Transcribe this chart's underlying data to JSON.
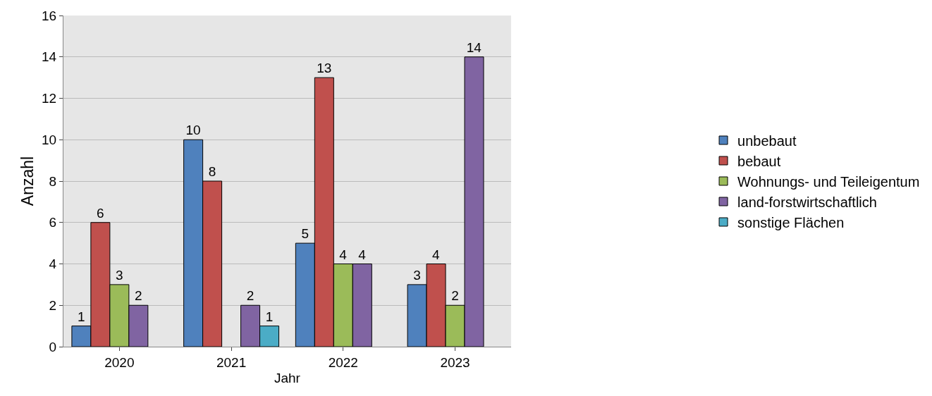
{
  "chart_data": {
    "type": "bar",
    "xlabel": "Jahr",
    "ylabel": "Anzahl",
    "categories": [
      "2020",
      "2021",
      "2022",
      "2023"
    ],
    "series": [
      {
        "name": "unbebaut",
        "color": "#4f81bd",
        "values": [
          1,
          10,
          5,
          3
        ]
      },
      {
        "name": "bebaut",
        "color": "#c0504d",
        "values": [
          6,
          8,
          13,
          4
        ]
      },
      {
        "name": "Wohnungs- und Teileigentum",
        "color": "#9bbb59",
        "values": [
          3,
          null,
          4,
          2
        ]
      },
      {
        "name": "land-forstwirtschaftlich",
        "color": "#8064a2",
        "values": [
          2,
          2,
          4,
          14
        ]
      },
      {
        "name": "sonstige Flächen",
        "color": "#4bacc6",
        "values": [
          null,
          1,
          null,
          null
        ]
      }
    ],
    "ylim": [
      0,
      16
    ],
    "yticks": [
      0,
      2,
      4,
      6,
      8,
      10,
      12,
      14,
      16
    ],
    "grid": "y",
    "legend": "right",
    "data_labels": true
  }
}
